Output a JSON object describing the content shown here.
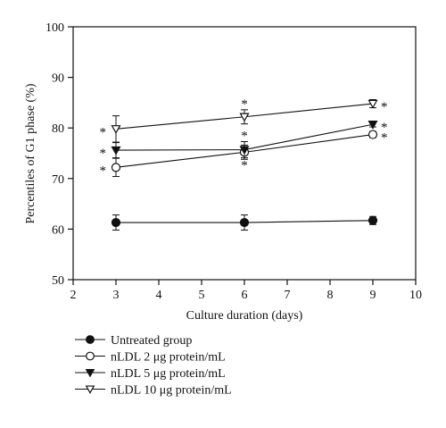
{
  "chart_data": {
    "type": "line",
    "title": "",
    "xlabel": "Culture duration (days)",
    "ylabel": "Percentiles of G1 phase (%)",
    "xlim": [
      2,
      10
    ],
    "ylim": [
      50,
      100
    ],
    "xticks": [
      2,
      3,
      4,
      5,
      6,
      7,
      8,
      9,
      10
    ],
    "yticks": [
      50,
      60,
      70,
      80,
      90,
      100
    ],
    "grid": false,
    "legend_position": "bottom-left, below plot",
    "x": [
      3,
      6,
      9
    ],
    "series": [
      {
        "name": "Untreated group",
        "marker": "filled-circle",
        "values": [
          61.3,
          61.3,
          61.7
        ],
        "errors": [
          1.5,
          1.5,
          0.8
        ],
        "asterisks": [
          false,
          false,
          false
        ]
      },
      {
        "name": "nLDL 2 μg protein/mL",
        "marker": "open-circle",
        "values": [
          72.2,
          75.2,
          78.7
        ],
        "errors": [
          1.8,
          1.4,
          0.6
        ],
        "asterisks": [
          true,
          true,
          true
        ]
      },
      {
        "name": "nLDL 5 μg protein/mL",
        "marker": "filled-triangle-down",
        "values": [
          75.6,
          75.7,
          80.7
        ],
        "errors": [
          1.5,
          1.6,
          0.5
        ],
        "asterisks": [
          true,
          true,
          true
        ]
      },
      {
        "name": "nLDL 10 μg protein/mL",
        "marker": "open-triangle-down",
        "values": [
          79.8,
          82.2,
          84.8
        ],
        "errors": [
          2.6,
          1.4,
          0.8
        ],
        "asterisks": [
          true,
          true,
          true
        ]
      }
    ]
  }
}
